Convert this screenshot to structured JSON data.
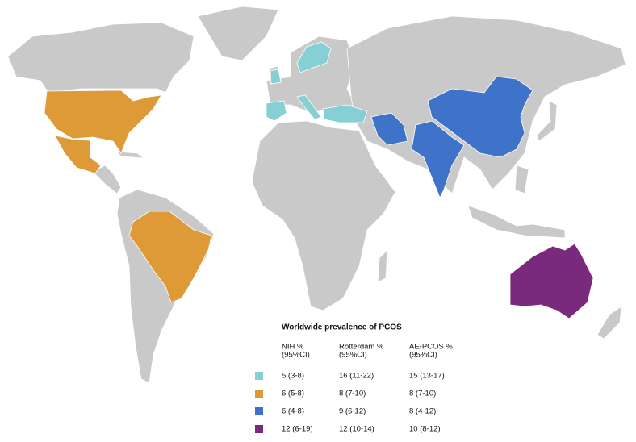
{
  "legend": {
    "title": "Worldwide prevalence of PCOS",
    "columns": [
      {
        "name": "NIH %",
        "sub": "(95%CI)"
      },
      {
        "name": "Rotterdam  %",
        "sub": "(95%CI)"
      },
      {
        "name": "AE-PCOS %",
        "sub": "(95%CI)"
      }
    ],
    "rows": [
      {
        "color": "#86cfd5",
        "values": [
          "5 (3-8)",
          "16 (11-22)",
          "15 (13-17)"
        ]
      },
      {
        "color": "#dd9a37",
        "values": [
          "6 (5-8)",
          "8 (7-10)",
          "8 (7-10)"
        ]
      },
      {
        "color": "#3f72c9",
        "values": [
          "6 (4-8)",
          "9 (6-12)",
          "8 (4-12)"
        ]
      },
      {
        "color": "#7a2a7c",
        "values": [
          "12 (6-19)",
          "12 (10-14)",
          "10 (8-12)"
        ]
      }
    ]
  }
}
